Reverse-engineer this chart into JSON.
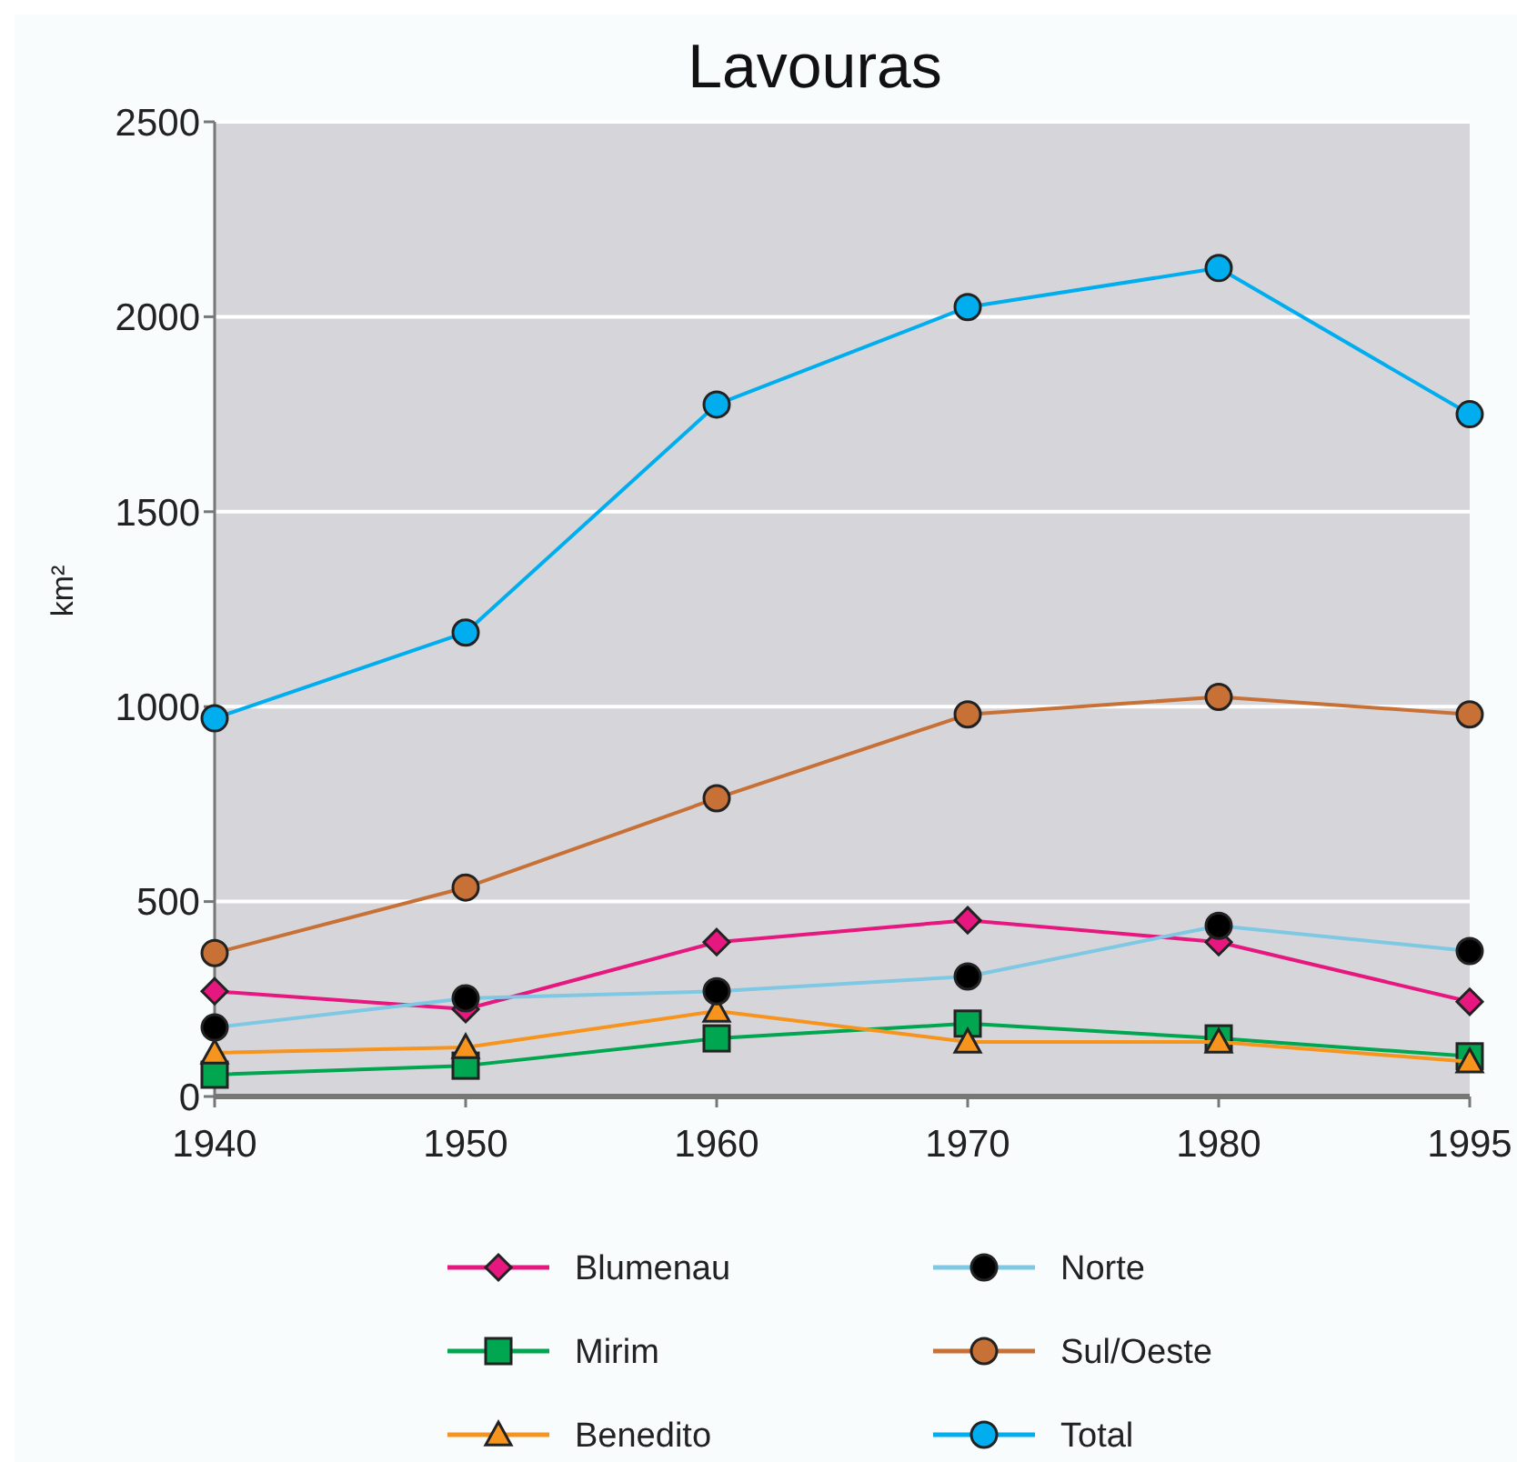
{
  "chart_data": {
    "type": "line",
    "title": "Lavouras",
    "ylabel": "km²",
    "categories": [
      "1940",
      "1950",
      "1960",
      "1970",
      "1980",
      "1995"
    ],
    "ylim": [
      0,
      2500
    ],
    "yticks": [
      0,
      500,
      1000,
      1500,
      2000,
      2500
    ],
    "grid": "y",
    "legend": "bottom",
    "series": [
      {
        "name": "Blumenau",
        "color": "#e6177e",
        "marker": "diamond",
        "values": [
          270,
          224,
          396,
          452,
          396,
          243
        ]
      },
      {
        "name": "Mirim",
        "color": "#00a650",
        "marker": "square",
        "values": [
          56,
          79,
          149,
          187,
          149,
          103
        ]
      },
      {
        "name": "Benedito",
        "color": "#f7941d",
        "marker": "triangle",
        "values": [
          112,
          126,
          219,
          140,
          140,
          89
        ]
      },
      {
        "name": "Norte",
        "color": "#7ec8e3",
        "colors": [
          "#000000",
          "#000000",
          "#000000",
          "#000000",
          "#000000",
          "#000000"
        ],
        "marker": "circle",
        "values": [
          177,
          252,
          270,
          308,
          438,
          373
        ]
      },
      {
        "name": "Sul/Oeste",
        "color": "#c87137",
        "marker": "circle",
        "values": [
          368,
          536,
          765,
          980,
          1025,
          980
        ]
      },
      {
        "name": "Total",
        "color": "#00aeef",
        "marker": "circle",
        "values": [
          970,
          1190,
          1775,
          2025,
          2125,
          1750
        ]
      }
    ]
  }
}
